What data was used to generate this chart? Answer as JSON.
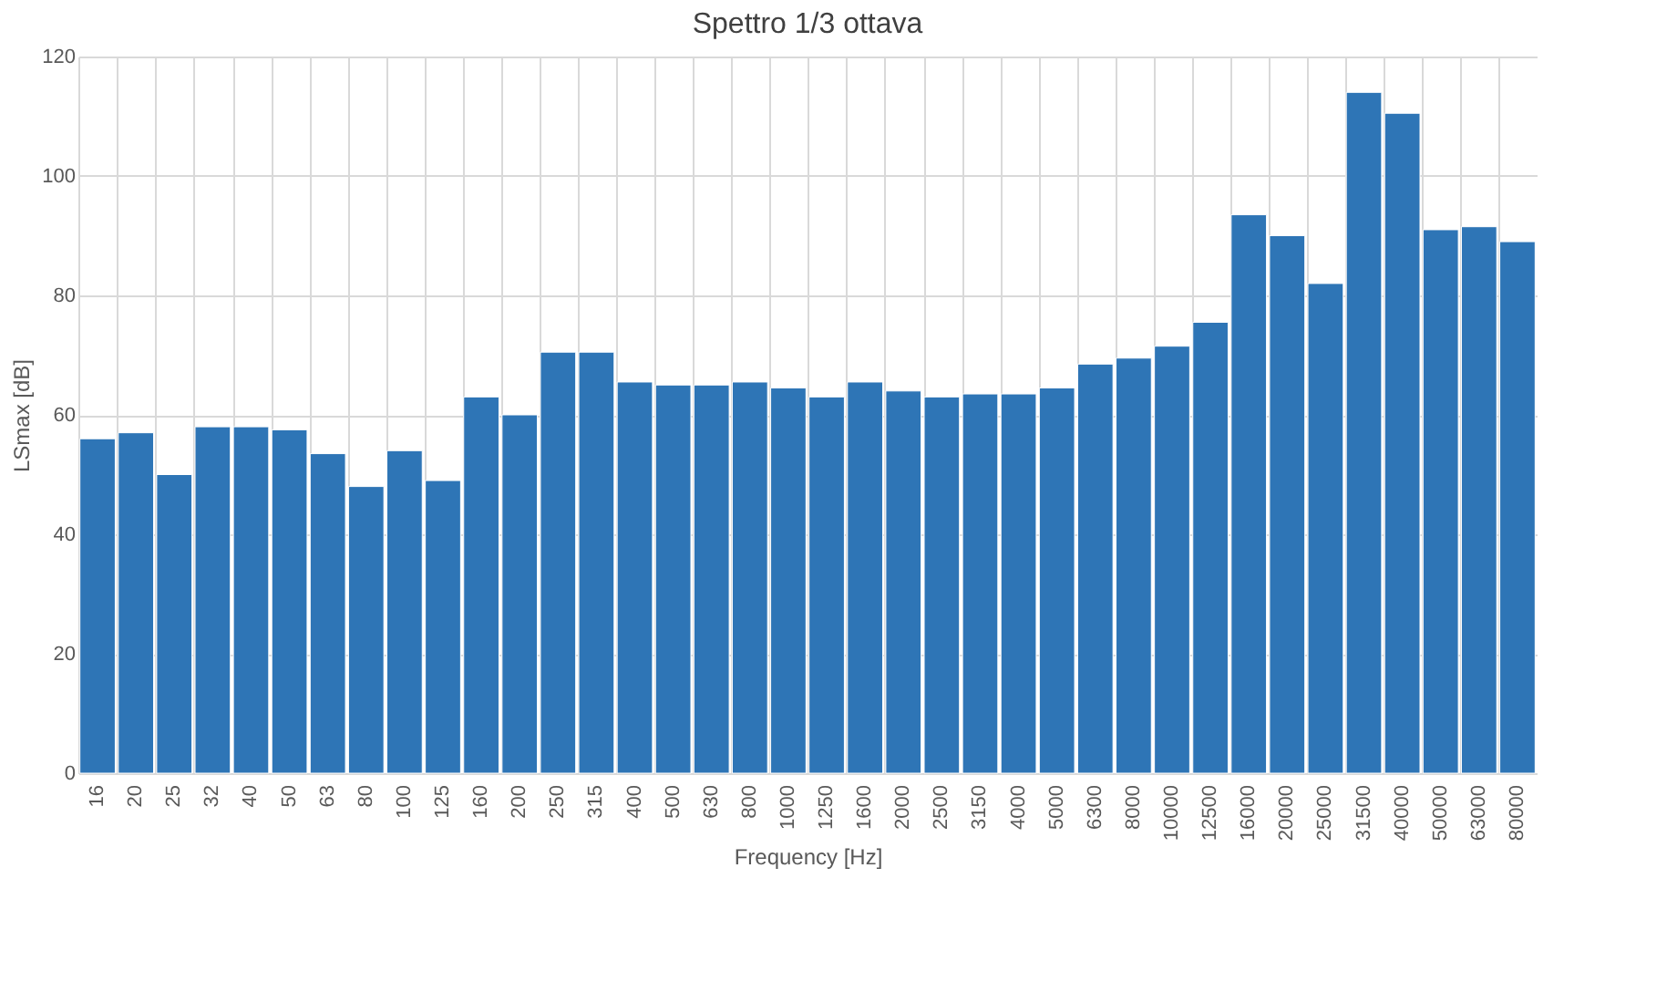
{
  "chart_data": {
    "type": "bar",
    "title": "Spettro 1/3 ottava",
    "xlabel": "Frequency [Hz]",
    "ylabel": "LSmax [dB]",
    "categories": [
      "16",
      "20",
      "25",
      "32",
      "40",
      "50",
      "63",
      "80",
      "100",
      "125",
      "160",
      "200",
      "250",
      "315",
      "400",
      "500",
      "630",
      "800",
      "1000",
      "1250",
      "1600",
      "2000",
      "2500",
      "3150",
      "4000",
      "5000",
      "6300",
      "8000",
      "10000",
      "12500",
      "16000",
      "20000",
      "25000",
      "31500",
      "40000",
      "50000",
      "63000",
      "80000"
    ],
    "values": [
      56,
      57,
      50,
      58,
      58,
      57.5,
      53.5,
      48,
      54,
      49,
      63,
      60,
      70.5,
      70.5,
      65.5,
      65,
      65,
      65.5,
      64.5,
      63,
      65.5,
      64,
      63,
      63.5,
      63.5,
      64.5,
      68.5,
      69.5,
      71.5,
      75.5,
      93.5,
      90,
      82,
      114,
      110.5,
      91,
      91.5,
      89
    ],
    "color": "#2e75b6",
    "ylim": [
      0,
      120
    ],
    "yticks": [
      0,
      20,
      40,
      60,
      80,
      100,
      120
    ],
    "grid": true
  }
}
